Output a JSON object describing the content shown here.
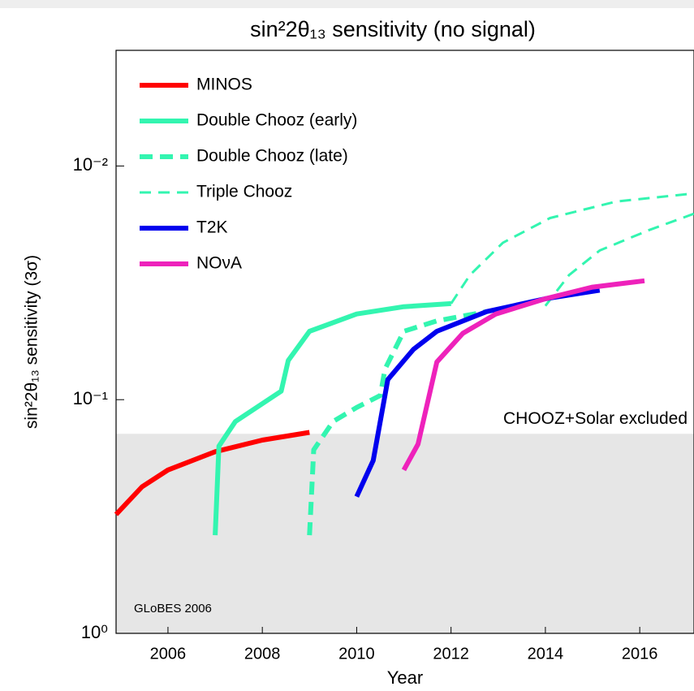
{
  "chart_data": {
    "type": "line",
    "title": "sin²2θ₁₃ sensitivity (no signal)",
    "x_label": "Year",
    "y_label": "sin²2θ₁₃ sensitivity (3σ)",
    "log_y": true,
    "xlim": [
      2004.9,
      2017.15
    ],
    "ylim": [
      1,
      0.0032
    ],
    "xticks": [
      2006,
      2008,
      2010,
      2012,
      2014,
      2016
    ],
    "yticks": [
      {
        "value": 0.01,
        "label": "10⁻²"
      },
      {
        "value": 0.1,
        "label": "10⁻¹"
      },
      {
        "value": 1,
        "label": "10⁰"
      }
    ],
    "legend": "upper left",
    "excluded_region": {
      "label": "CHOOZ+Solar excluded",
      "from": 0.14,
      "to": 1,
      "color": "#e6e6e6"
    },
    "annotation": "GLoBES 2006",
    "series": [
      {
        "name": "MINOS",
        "color": "#ff0000",
        "dash": false,
        "thick": true,
        "x": [
          2004.9,
          2005.45,
          2006,
          2007,
          2008,
          2009
        ],
        "values": [
          0.31,
          0.236,
          0.2,
          0.167,
          0.149,
          0.138
        ]
      },
      {
        "name": "Double Chooz (early)",
        "color": "#33f5b0",
        "dash": false,
        "thick": true,
        "x": [
          2007,
          2007.08,
          2007.43,
          2008.4,
          2008.55,
          2009,
          2010,
          2011,
          2012
        ],
        "values": [
          0.38,
          0.158,
          0.124,
          0.092,
          0.068,
          0.051,
          0.043,
          0.04,
          0.0388
        ]
      },
      {
        "name": "Double Chooz (late)",
        "color": "#33f5b0",
        "dash": true,
        "thick": true,
        "x": [
          2009,
          2009.09,
          2009.5,
          2010,
          2010.5,
          2010.6,
          2011,
          2011.7,
          2012.75
        ],
        "values": [
          0.38,
          0.164,
          0.124,
          0.108,
          0.096,
          0.074,
          0.051,
          0.046,
          0.042
        ]
      },
      {
        "name": "Triple Chooz",
        "color": "#33f5b0",
        "dash": true,
        "thick": false,
        "x": [
          2012,
          2012.4,
          2013.1,
          2014.1,
          2015.5,
          2017.15,
          null,
          2014,
          2014.5,
          2015.15,
          2016.2,
          2017.15
        ],
        "values": [
          0.0388,
          0.0293,
          0.0213,
          0.0167,
          0.0142,
          0.0131,
          null,
          0.0397,
          0.0293,
          0.023,
          0.0188,
          0.016
        ]
      },
      {
        "name": "T2K",
        "color": "#0000ee",
        "dash": false,
        "thick": true,
        "x": [
          2010,
          2010.35,
          2010.66,
          2011.2,
          2011.7,
          2012.75,
          2014,
          2015.15
        ],
        "values": [
          0.26,
          0.182,
          0.082,
          0.061,
          0.051,
          0.042,
          0.037,
          0.034
        ]
      },
      {
        "name": "NOνA",
        "color": "#ee22bb",
        "dash": false,
        "thick": true,
        "x": [
          2011,
          2011.3,
          2011.7,
          2012.25,
          2012.95,
          2014,
          2015,
          2016.1
        ],
        "values": [
          0.2,
          0.155,
          0.069,
          0.052,
          0.043,
          0.037,
          0.033,
          0.031
        ]
      }
    ]
  }
}
